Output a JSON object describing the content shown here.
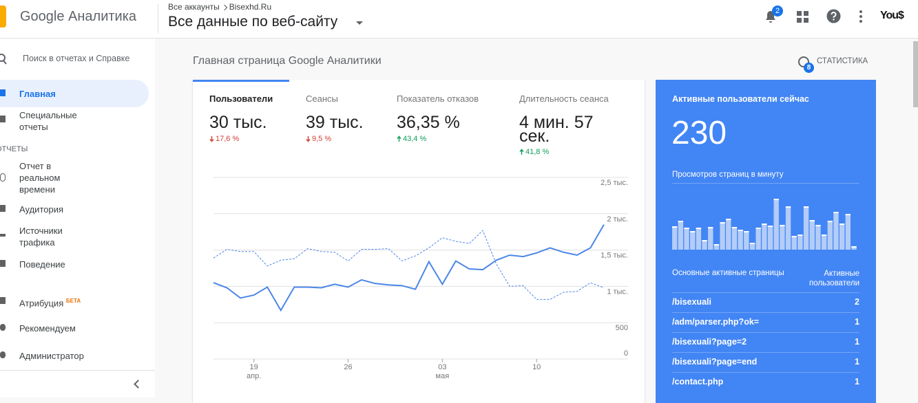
{
  "header": {
    "logo": "Google Аналитика",
    "breadcrumb_root": "Все аккаунты",
    "breadcrumb_account": "Bisexhd.Ru",
    "view": "Все данные по веб-сайту",
    "notifications": 2,
    "avatar": "You$"
  },
  "sidebar": {
    "search": "Поиск в отчетах и Справке",
    "home": "Главная",
    "custom": "Специальные отчеты",
    "section": "ОТЧЕТЫ",
    "realtime": "Отчет в реальном времени",
    "audience": "Аудитория",
    "acquisition": "Источники трафика",
    "behavior": "Поведение",
    "attribution": "Атрибуция",
    "beta": "БЕТА",
    "discover": "Рекомендуем",
    "admin": "Администратор"
  },
  "main": {
    "title": "Главная страница Google Аналитики",
    "insights": {
      "label": "СТАТИСТИКА",
      "count": 8
    },
    "metrics": [
      {
        "label": "Пользователи",
        "value": "30 тыс.",
        "change": "17,6 %",
        "direction": "down"
      },
      {
        "label": "Сеансы",
        "value": "39 тыс.",
        "change": "9,5 %",
        "direction": "down"
      },
      {
        "label": "Показатель отказов",
        "value": "36,35 %",
        "change": "43,4 %",
        "direction": "up"
      },
      {
        "label": "Длительность сеанса",
        "value": "4 мин. 57 сек.",
        "change": "41,8 %",
        "direction": "up"
      }
    ]
  },
  "chart_data": {
    "type": "line",
    "categories": [
      null,
      null,
      null,
      "19",
      null,
      null,
      null,
      null,
      null,
      null,
      "26",
      null,
      null,
      null,
      null,
      null,
      null,
      "03",
      null,
      null,
      null,
      null,
      null,
      null,
      "10",
      null,
      null,
      null,
      null,
      null
    ],
    "category_sublabels": [
      null,
      null,
      null,
      "апр.",
      null,
      null,
      null,
      null,
      null,
      null,
      null,
      null,
      null,
      null,
      null,
      null,
      null,
      "мая",
      null,
      null,
      null,
      null,
      null,
      null,
      null,
      null,
      null,
      null,
      null,
      null
    ],
    "series": [
      {
        "color": "#4a86e8",
        "dashed": false,
        "values": [
          1050,
          980,
          840,
          880,
          990,
          670,
          990,
          990,
          980,
          1030,
          990,
          1090,
          1040,
          1020,
          1010,
          960,
          1340,
          1030,
          1350,
          1240,
          1230,
          1360,
          1430,
          1410,
          1460,
          1530,
          1470,
          1430,
          1530,
          1850
        ]
      },
      {
        "color": "#4a86e8",
        "dashed": true,
        "values": [
          1390,
          1510,
          1480,
          1480,
          1280,
          1360,
          1380,
          1520,
          1480,
          1470,
          1350,
          1510,
          1510,
          1520,
          1350,
          1420,
          1530,
          1670,
          1620,
          1590,
          1770,
          1310,
          1000,
          1010,
          820,
          820,
          920,
          930,
          1050,
          980
        ]
      }
    ],
    "ylim": [
      0,
      2500
    ],
    "yticks": [
      0,
      500,
      {
        "value": 1000,
        "label": "1 тыс."
      },
      {
        "value": 1500,
        "label": "1,5 тыс."
      },
      {
        "value": 2000,
        "label": "2 тыс."
      },
      {
        "value": 2500,
        "label": "2,5 тыс."
      }
    ],
    "grid": true
  },
  "realtime": {
    "title": "Активные пользователи сейчас",
    "count": 230,
    "pageviews_title": "Просмотров страниц в минуту",
    "pageviews": {
      "type": "bar",
      "color": "#b3cdf8",
      "ylim": [
        0,
        80
      ],
      "values": [
        34,
        42,
        32,
        27,
        32,
        14,
        33,
        8,
        40,
        45,
        33,
        29,
        27,
        10,
        32,
        38,
        35,
        74,
        36,
        63,
        20,
        22,
        63,
        43,
        36,
        22,
        42,
        55,
        38,
        52,
        5
      ]
    },
    "table": {
      "columns": [
        "Основные активные страницы",
        "Активные пользователи"
      ],
      "rows": [
        [
          "/bisexuali",
          2
        ],
        [
          "/adm/parser.php?ok=",
          1
        ],
        [
          "/bisexuali?page=2",
          1
        ],
        [
          "/bisexuali?page=end",
          1
        ],
        [
          "/contact.php",
          1
        ]
      ]
    }
  }
}
